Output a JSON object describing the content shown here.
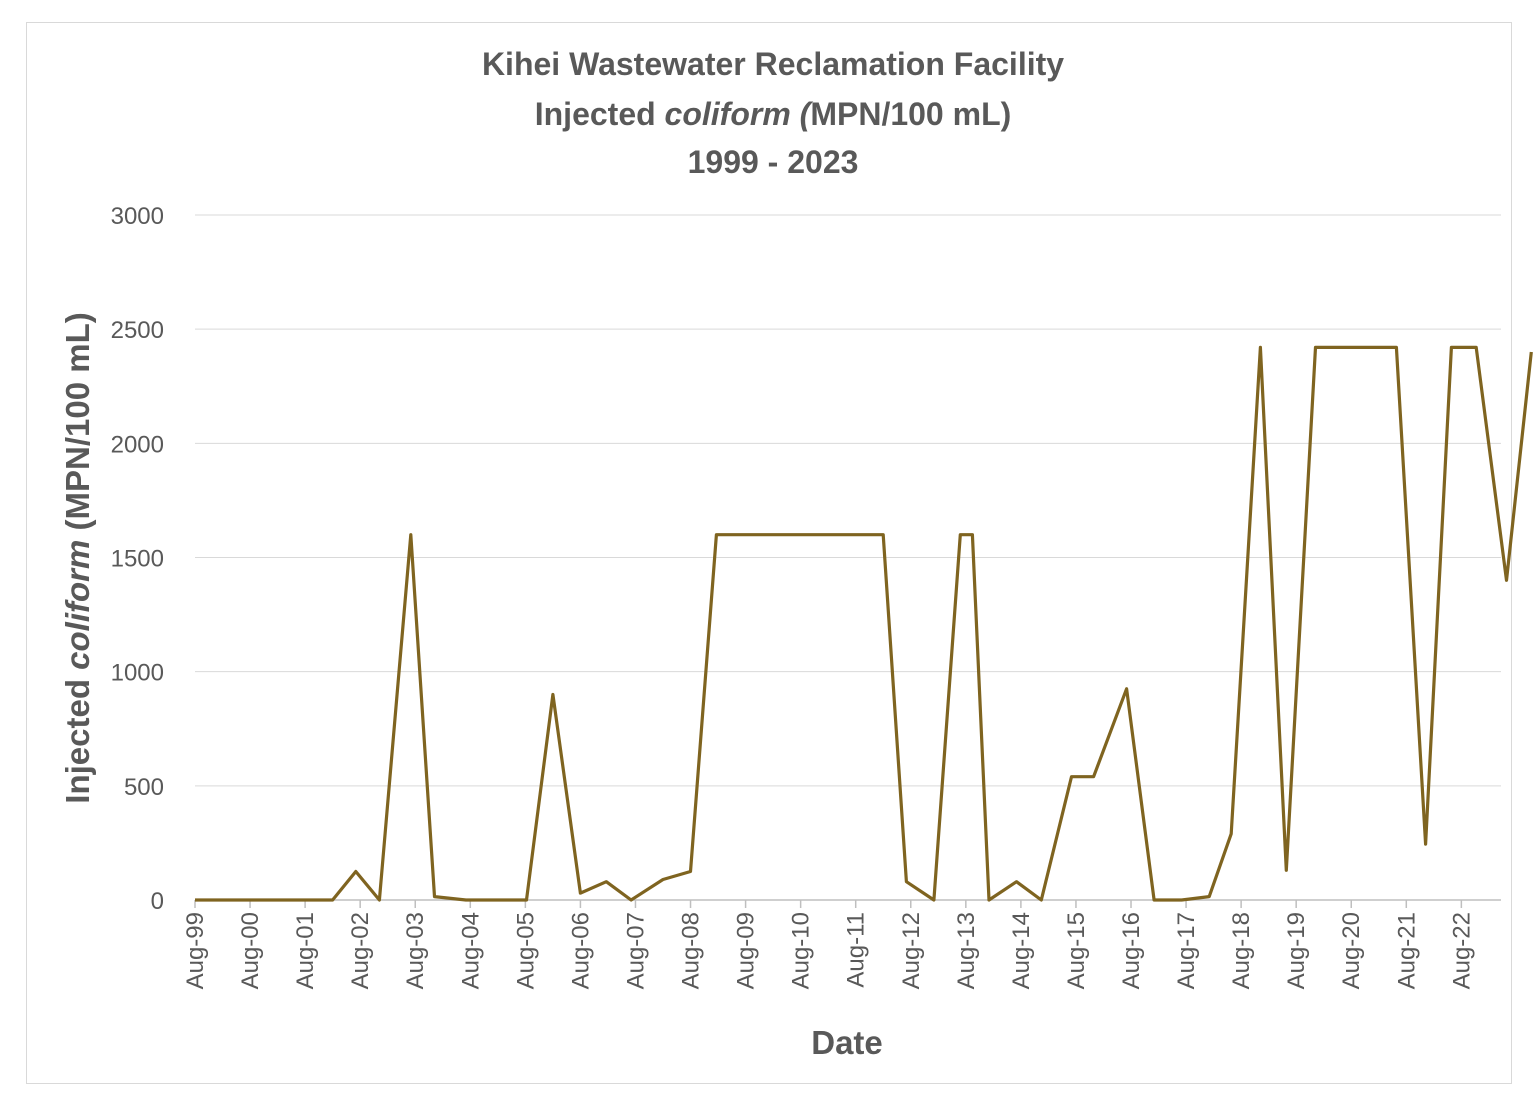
{
  "chart_data": {
    "type": "line",
    "title_lines": [
      {
        "plain": "Kihei Wastewater Reclamation Facility"
      },
      {
        "before": "Injected ",
        "italic": "coliform",
        "after": " (MPN/100 mL)",
        "italic_paren": "("
      },
      {
        "plain": "1999 - 2023"
      }
    ],
    "title": "Kihei Wastewater Reclamation Facility Injected coliform (MPN/100 mL) 1999 - 2023",
    "xlabel": "Date",
    "ylabel_parts": {
      "before": "Injected ",
      "italic": "coliform",
      "after": " (MPN/100 mL)"
    },
    "ylim": [
      0,
      3000
    ],
    "yticks": [
      0,
      500,
      1000,
      1500,
      2000,
      2500,
      3000
    ],
    "xlim": [
      1999.58,
      2023.3
    ],
    "xticks": [
      {
        "x": 1999.58,
        "label": "Aug-99"
      },
      {
        "x": 2000.58,
        "label": "Aug-00"
      },
      {
        "x": 2001.58,
        "label": "Aug-01"
      },
      {
        "x": 2002.58,
        "label": "Aug-02"
      },
      {
        "x": 2003.58,
        "label": "Aug-03"
      },
      {
        "x": 2004.58,
        "label": "Aug-04"
      },
      {
        "x": 2005.58,
        "label": "Aug-05"
      },
      {
        "x": 2006.58,
        "label": "Aug-06"
      },
      {
        "x": 2007.58,
        "label": "Aug-07"
      },
      {
        "x": 2008.58,
        "label": "Aug-08"
      },
      {
        "x": 2009.58,
        "label": "Aug-09"
      },
      {
        "x": 2010.58,
        "label": "Aug-10"
      },
      {
        "x": 2011.58,
        "label": "Aug-11"
      },
      {
        "x": 2012.58,
        "label": "Aug-12"
      },
      {
        "x": 2013.58,
        "label": "Aug-13"
      },
      {
        "x": 2014.58,
        "label": "Aug-14"
      },
      {
        "x": 2015.58,
        "label": "Aug-15"
      },
      {
        "x": 2016.58,
        "label": "Aug-16"
      },
      {
        "x": 2017.58,
        "label": "Aug-17"
      },
      {
        "x": 2018.58,
        "label": "Aug-18"
      },
      {
        "x": 2019.58,
        "label": "Aug-19"
      },
      {
        "x": 2020.58,
        "label": "Aug-20"
      },
      {
        "x": 2021.58,
        "label": "Aug-21"
      },
      {
        "x": 2022.58,
        "label": "Aug-22"
      }
    ],
    "series": [
      {
        "name": "Injected coliform",
        "color": "#7f6420",
        "points": [
          [
            1999.58,
            0
          ],
          [
            2002.08,
            0
          ],
          [
            2002.5,
            125
          ],
          [
            2002.93,
            0
          ],
          [
            2003.5,
            1600
          ],
          [
            2003.93,
            15
          ],
          [
            2004.5,
            0
          ],
          [
            2005.6,
            0
          ],
          [
            2006.08,
            900
          ],
          [
            2006.58,
            30
          ],
          [
            2007.05,
            80
          ],
          [
            2007.5,
            0
          ],
          [
            2008.08,
            90
          ],
          [
            2008.58,
            125
          ],
          [
            2009.05,
            1600
          ],
          [
            2012.08,
            1600
          ],
          [
            2012.5,
            80
          ],
          [
            2013.0,
            0
          ],
          [
            2013.48,
            1600
          ],
          [
            2013.7,
            1600
          ],
          [
            2014.0,
            0
          ],
          [
            2014.5,
            80
          ],
          [
            2014.95,
            0
          ],
          [
            2015.5,
            540
          ],
          [
            2015.9,
            540
          ],
          [
            2016.5,
            925
          ],
          [
            2017.0,
            0
          ],
          [
            2017.5,
            0
          ],
          [
            2018.0,
            15
          ],
          [
            2018.4,
            290
          ],
          [
            2018.93,
            2420
          ],
          [
            2019.4,
            130
          ],
          [
            2019.93,
            2420
          ],
          [
            2021.4,
            2420
          ],
          [
            2021.93,
            245
          ],
          [
            2022.4,
            2420
          ],
          [
            2022.85,
            2420
          ],
          [
            2023.4,
            1400
          ],
          [
            2023.85,
            2400
          ]
        ]
      }
    ]
  }
}
